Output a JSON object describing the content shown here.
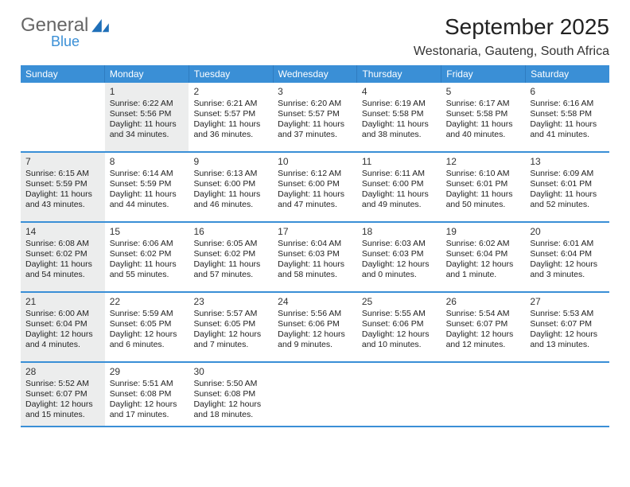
{
  "brand": {
    "word1": "General",
    "word2": "Blue",
    "logo_color": "#1f6fb8"
  },
  "title": "September 2025",
  "location": "Westonaria, Gauteng, South Africa",
  "colors": {
    "header_bg": "#3a8fd6",
    "header_text": "#ffffff",
    "rule": "#3a8fd6",
    "shade_bg": "#eceded",
    "cell_bg": "#ffffff",
    "text": "#222222"
  },
  "day_headers": [
    "Sunday",
    "Monday",
    "Tuesday",
    "Wednesday",
    "Thursday",
    "Friday",
    "Saturday"
  ],
  "weeks": [
    [
      {
        "n": "",
        "shade": false
      },
      {
        "n": "1",
        "shade": true,
        "l1": "Sunrise: 6:22 AM",
        "l2": "Sunset: 5:56 PM",
        "l3": "Daylight: 11 hours",
        "l4": "and 34 minutes."
      },
      {
        "n": "2",
        "shade": false,
        "l1": "Sunrise: 6:21 AM",
        "l2": "Sunset: 5:57 PM",
        "l3": "Daylight: 11 hours",
        "l4": "and 36 minutes."
      },
      {
        "n": "3",
        "shade": false,
        "l1": "Sunrise: 6:20 AM",
        "l2": "Sunset: 5:57 PM",
        "l3": "Daylight: 11 hours",
        "l4": "and 37 minutes."
      },
      {
        "n": "4",
        "shade": false,
        "l1": "Sunrise: 6:19 AM",
        "l2": "Sunset: 5:58 PM",
        "l3": "Daylight: 11 hours",
        "l4": "and 38 minutes."
      },
      {
        "n": "5",
        "shade": false,
        "l1": "Sunrise: 6:17 AM",
        "l2": "Sunset: 5:58 PM",
        "l3": "Daylight: 11 hours",
        "l4": "and 40 minutes."
      },
      {
        "n": "6",
        "shade": false,
        "l1": "Sunrise: 6:16 AM",
        "l2": "Sunset: 5:58 PM",
        "l3": "Daylight: 11 hours",
        "l4": "and 41 minutes."
      }
    ],
    [
      {
        "n": "7",
        "shade": true,
        "l1": "Sunrise: 6:15 AM",
        "l2": "Sunset: 5:59 PM",
        "l3": "Daylight: 11 hours",
        "l4": "and 43 minutes."
      },
      {
        "n": "8",
        "shade": false,
        "l1": "Sunrise: 6:14 AM",
        "l2": "Sunset: 5:59 PM",
        "l3": "Daylight: 11 hours",
        "l4": "and 44 minutes."
      },
      {
        "n": "9",
        "shade": false,
        "l1": "Sunrise: 6:13 AM",
        "l2": "Sunset: 6:00 PM",
        "l3": "Daylight: 11 hours",
        "l4": "and 46 minutes."
      },
      {
        "n": "10",
        "shade": false,
        "l1": "Sunrise: 6:12 AM",
        "l2": "Sunset: 6:00 PM",
        "l3": "Daylight: 11 hours",
        "l4": "and 47 minutes."
      },
      {
        "n": "11",
        "shade": false,
        "l1": "Sunrise: 6:11 AM",
        "l2": "Sunset: 6:00 PM",
        "l3": "Daylight: 11 hours",
        "l4": "and 49 minutes."
      },
      {
        "n": "12",
        "shade": false,
        "l1": "Sunrise: 6:10 AM",
        "l2": "Sunset: 6:01 PM",
        "l3": "Daylight: 11 hours",
        "l4": "and 50 minutes."
      },
      {
        "n": "13",
        "shade": false,
        "l1": "Sunrise: 6:09 AM",
        "l2": "Sunset: 6:01 PM",
        "l3": "Daylight: 11 hours",
        "l4": "and 52 minutes."
      }
    ],
    [
      {
        "n": "14",
        "shade": true,
        "l1": "Sunrise: 6:08 AM",
        "l2": "Sunset: 6:02 PM",
        "l3": "Daylight: 11 hours",
        "l4": "and 54 minutes."
      },
      {
        "n": "15",
        "shade": false,
        "l1": "Sunrise: 6:06 AM",
        "l2": "Sunset: 6:02 PM",
        "l3": "Daylight: 11 hours",
        "l4": "and 55 minutes."
      },
      {
        "n": "16",
        "shade": false,
        "l1": "Sunrise: 6:05 AM",
        "l2": "Sunset: 6:02 PM",
        "l3": "Daylight: 11 hours",
        "l4": "and 57 minutes."
      },
      {
        "n": "17",
        "shade": false,
        "l1": "Sunrise: 6:04 AM",
        "l2": "Sunset: 6:03 PM",
        "l3": "Daylight: 11 hours",
        "l4": "and 58 minutes."
      },
      {
        "n": "18",
        "shade": false,
        "l1": "Sunrise: 6:03 AM",
        "l2": "Sunset: 6:03 PM",
        "l3": "Daylight: 12 hours",
        "l4": "and 0 minutes."
      },
      {
        "n": "19",
        "shade": false,
        "l1": "Sunrise: 6:02 AM",
        "l2": "Sunset: 6:04 PM",
        "l3": "Daylight: 12 hours",
        "l4": "and 1 minute."
      },
      {
        "n": "20",
        "shade": false,
        "l1": "Sunrise: 6:01 AM",
        "l2": "Sunset: 6:04 PM",
        "l3": "Daylight: 12 hours",
        "l4": "and 3 minutes."
      }
    ],
    [
      {
        "n": "21",
        "shade": true,
        "l1": "Sunrise: 6:00 AM",
        "l2": "Sunset: 6:04 PM",
        "l3": "Daylight: 12 hours",
        "l4": "and 4 minutes."
      },
      {
        "n": "22",
        "shade": false,
        "l1": "Sunrise: 5:59 AM",
        "l2": "Sunset: 6:05 PM",
        "l3": "Daylight: 12 hours",
        "l4": "and 6 minutes."
      },
      {
        "n": "23",
        "shade": false,
        "l1": "Sunrise: 5:57 AM",
        "l2": "Sunset: 6:05 PM",
        "l3": "Daylight: 12 hours",
        "l4": "and 7 minutes."
      },
      {
        "n": "24",
        "shade": false,
        "l1": "Sunrise: 5:56 AM",
        "l2": "Sunset: 6:06 PM",
        "l3": "Daylight: 12 hours",
        "l4": "and 9 minutes."
      },
      {
        "n": "25",
        "shade": false,
        "l1": "Sunrise: 5:55 AM",
        "l2": "Sunset: 6:06 PM",
        "l3": "Daylight: 12 hours",
        "l4": "and 10 minutes."
      },
      {
        "n": "26",
        "shade": false,
        "l1": "Sunrise: 5:54 AM",
        "l2": "Sunset: 6:07 PM",
        "l3": "Daylight: 12 hours",
        "l4": "and 12 minutes."
      },
      {
        "n": "27",
        "shade": false,
        "l1": "Sunrise: 5:53 AM",
        "l2": "Sunset: 6:07 PM",
        "l3": "Daylight: 12 hours",
        "l4": "and 13 minutes."
      }
    ],
    [
      {
        "n": "28",
        "shade": true,
        "l1": "Sunrise: 5:52 AM",
        "l2": "Sunset: 6:07 PM",
        "l3": "Daylight: 12 hours",
        "l4": "and 15 minutes."
      },
      {
        "n": "29",
        "shade": false,
        "l1": "Sunrise: 5:51 AM",
        "l2": "Sunset: 6:08 PM",
        "l3": "Daylight: 12 hours",
        "l4": "and 17 minutes."
      },
      {
        "n": "30",
        "shade": false,
        "l1": "Sunrise: 5:50 AM",
        "l2": "Sunset: 6:08 PM",
        "l3": "Daylight: 12 hours",
        "l4": "and 18 minutes."
      },
      {
        "n": "",
        "shade": false
      },
      {
        "n": "",
        "shade": false
      },
      {
        "n": "",
        "shade": false
      },
      {
        "n": "",
        "shade": false
      }
    ]
  ]
}
